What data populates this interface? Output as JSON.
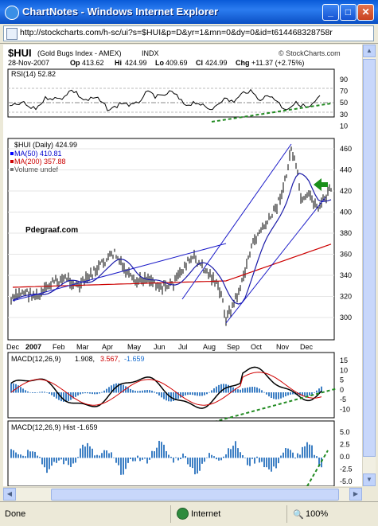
{
  "window": {
    "title": "ChartNotes - Windows Internet Explorer"
  },
  "address": {
    "url": "http://stockcharts.com/h-sc/ui?s=$HUI&p=D&yr=1&mn=0&dy=0&id=t614468328758r"
  },
  "chart_header": {
    "symbol": "$HUI",
    "name": "(Gold Bugs Index - AMEX)",
    "exchange": "INDX",
    "watermark": "© StockCharts.com",
    "date": "28-Nov-2007",
    "open_label": "Op",
    "open": "413.62",
    "high_label": "Hi",
    "high": "424.99",
    "low_label": "Lo",
    "low": "409.69",
    "close_label": "Cl",
    "close": "424.99",
    "change_label": "Chg",
    "change": "+11.37 (+2.75%)"
  },
  "rsi": {
    "label": "RSI(14) 52.82",
    "ticks": [
      "90",
      "70",
      "50",
      "30",
      "10"
    ]
  },
  "price_panel": {
    "legend": [
      "$HUI (Daily) 424.99",
      "MA(50) 410.81",
      "MA(200) 357.88",
      "Volume undef"
    ],
    "legend_colors": [
      "#000000",
      "#0000ff",
      "#ff0000",
      "#777777"
    ],
    "annotation": "Pdegraaf.com",
    "ticks": [
      "460",
      "440",
      "420",
      "400",
      "380",
      "360",
      "340",
      "320",
      "300"
    ],
    "months": [
      "Dec",
      "2007",
      "Feb",
      "Mar",
      "Apr",
      "May",
      "Jun",
      "Jul",
      "Aug",
      "Sep",
      "Oct",
      "Nov",
      "Dec"
    ]
  },
  "macd": {
    "label": "MACD(12,26,9)",
    "v1": "1.908,",
    "v2": "3.567,",
    "v3": "-1.659",
    "ticks": [
      "15",
      "10",
      "5",
      "0",
      "-5",
      "-10"
    ]
  },
  "hist": {
    "label": "MACD(12,26,9) Hist -1.659",
    "ticks": [
      "5.0",
      "2.5",
      "0.0",
      "-2.5",
      "-5.0"
    ]
  },
  "statusbar": {
    "text": "Done",
    "zone": "Internet",
    "zoom": "100%"
  },
  "colors": {
    "accent": "#1a5fd6",
    "trend": "#228b22",
    "ma50": "#0000ff",
    "ma200": "#cc0000",
    "hist": "#3d7fc4"
  }
}
